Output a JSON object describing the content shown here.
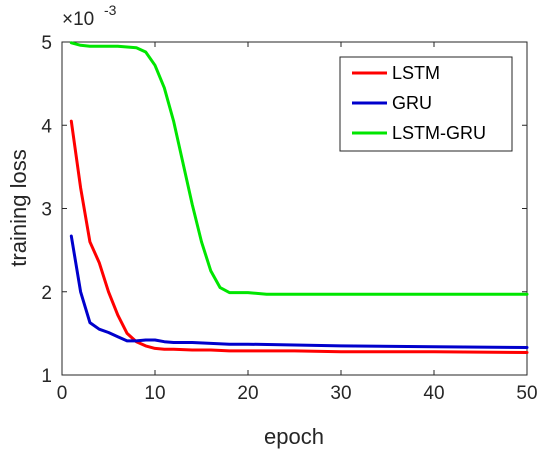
{
  "chart_data": {
    "type": "line",
    "title": "",
    "xlabel": "epoch",
    "ylabel": "training loss",
    "y_exponent_label": "×10",
    "y_exponent_value": "-3",
    "xlim": [
      0,
      50
    ],
    "ylim": [
      1,
      5
    ],
    "x_ticks": [
      0,
      10,
      20,
      30,
      40,
      50
    ],
    "y_ticks": [
      1,
      2,
      3,
      4,
      5
    ],
    "grid": false,
    "legend_position": "top-right",
    "series": [
      {
        "name": "LSTM",
        "color": "#ff0000",
        "x": [
          1,
          2,
          3,
          4,
          5,
          6,
          7,
          8,
          9,
          10,
          11,
          12,
          14,
          16,
          18,
          20,
          25,
          30,
          40,
          50
        ],
        "y": [
          4.05,
          3.25,
          2.6,
          2.35,
          2.0,
          1.72,
          1.5,
          1.4,
          1.35,
          1.32,
          1.31,
          1.31,
          1.3,
          1.3,
          1.29,
          1.29,
          1.29,
          1.28,
          1.28,
          1.27
        ]
      },
      {
        "name": "GRU",
        "color": "#0000cc",
        "x": [
          1,
          2,
          3,
          4,
          5,
          6,
          7,
          8,
          9,
          10,
          11,
          12,
          14,
          16,
          18,
          20,
          25,
          30,
          40,
          50
        ],
        "y": [
          2.67,
          2.0,
          1.63,
          1.55,
          1.51,
          1.46,
          1.41,
          1.41,
          1.42,
          1.42,
          1.4,
          1.39,
          1.39,
          1.38,
          1.37,
          1.37,
          1.36,
          1.35,
          1.34,
          1.33
        ]
      },
      {
        "name": "LSTM-GRU",
        "color": "#00e600",
        "x": [
          1,
          2,
          3,
          4,
          5,
          6,
          7,
          8,
          9,
          10,
          11,
          12,
          13,
          14,
          15,
          16,
          17,
          18,
          19,
          20,
          22,
          25,
          30,
          40,
          50
        ],
        "y": [
          4.99,
          4.96,
          4.95,
          4.95,
          4.95,
          4.95,
          4.94,
          4.93,
          4.88,
          4.72,
          4.45,
          4.05,
          3.55,
          3.05,
          2.6,
          2.25,
          2.05,
          1.99,
          1.99,
          1.99,
          1.97,
          1.97,
          1.97,
          1.97,
          1.97
        ]
      }
    ]
  }
}
